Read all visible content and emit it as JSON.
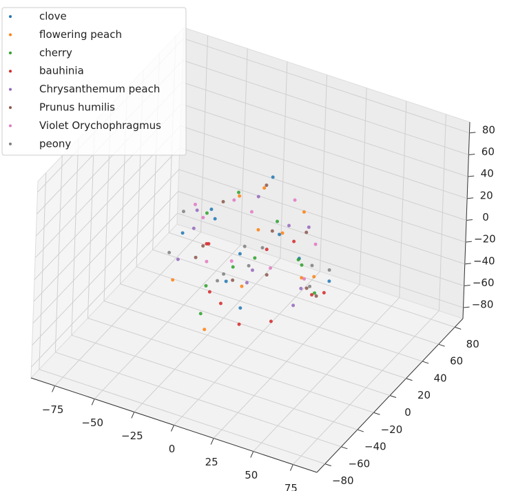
{
  "chart_data": {
    "type": "scatter3d",
    "xlim": [
      -90,
      90
    ],
    "ylim": [
      -90,
      90
    ],
    "zlim": [
      -90,
      90
    ],
    "xticks": [
      {
        "value": -75,
        "label": "−75"
      },
      {
        "value": -50,
        "label": "−50"
      },
      {
        "value": -25,
        "label": "−25"
      },
      0,
      25,
      50,
      75
    ],
    "yticks": [
      {
        "value": -80,
        "label": "−80"
      },
      {
        "value": -60,
        "label": "−60"
      },
      {
        "value": -40,
        "label": "−40"
      },
      {
        "value": -20,
        "label": "−20"
      },
      0,
      20,
      40,
      60,
      80
    ],
    "zticks": [
      {
        "value": -80,
        "label": "−80"
      },
      {
        "value": -60,
        "label": "−60"
      },
      {
        "value": -40,
        "label": "−40"
      },
      {
        "value": -20,
        "label": "−20"
      },
      0,
      20,
      40,
      60,
      80
    ],
    "grid": true,
    "legend": "upper left",
    "series": [
      {
        "name": "clove",
        "color": "#1f77b4",
        "x": [
          -30,
          12,
          40,
          -8,
          25,
          -45,
          5,
          -20,
          33,
          -12
        ],
        "y": [
          10,
          -35,
          20,
          42,
          -15,
          5,
          -40,
          28,
          -5,
          -22
        ],
        "z": [
          15,
          -20,
          -25,
          30,
          38,
          -10,
          5,
          -35,
          12,
          40
        ]
      },
      {
        "name": "flowering peach",
        "color": "#ff7f0e",
        "x": [
          -38,
          18,
          -5,
          30,
          -25,
          45,
          0,
          10,
          -15,
          22
        ],
        "y": [
          -20,
          30,
          -45,
          5,
          35,
          -10,
          15,
          -30,
          40,
          -5
        ],
        "z": [
          -30,
          20,
          -40,
          -15,
          10,
          5,
          45,
          -5,
          -20,
          30
        ]
      },
      {
        "name": "cherry",
        "color": "#2ca02c",
        "x": [
          20,
          -40,
          8,
          35,
          -15,
          -28,
          42,
          0,
          14,
          -5
        ],
        "y": [
          -8,
          25,
          -38,
          12,
          -30,
          40,
          -20,
          6,
          33,
          -45
        ],
        "z": [
          42,
          -5,
          18,
          -32,
          -42,
          8,
          22,
          -12,
          -28,
          0
        ]
      },
      {
        "name": "bauhinia",
        "color": "#d62728",
        "x": [
          -42,
          -10,
          28,
          5,
          -30,
          38,
          15,
          -22,
          45,
          -2
        ],
        "y": [
          30,
          -15,
          -28,
          45,
          8,
          18,
          -42,
          -5,
          -12,
          25
        ],
        "z": [
          -38,
          -42,
          -30,
          -25,
          -15,
          -35,
          -28,
          -45,
          -10,
          -20
        ]
      },
      {
        "name": "Chrysanthemum peach",
        "color": "#9467bd",
        "x": [
          5,
          -25,
          32,
          -40,
          18,
          -8,
          40,
          -18,
          25,
          -35
        ],
        "y": [
          38,
          -22,
          8,
          -10,
          -40,
          20,
          -25,
          45,
          15,
          2
        ],
        "z": [
          -5,
          25,
          30,
          -20,
          10,
          -38,
          -12,
          5,
          -35,
          18
        ]
      },
      {
        "name": "Prunus humilis",
        "color": "#8c564b",
        "x": [
          -15,
          30,
          -35,
          10,
          42,
          -5,
          22,
          -30,
          0,
          15
        ],
        "y": [
          -30,
          12,
          35,
          -42,
          0,
          28,
          -18,
          -8,
          22,
          40
        ],
        "z": [
          20,
          -30,
          0,
          10,
          -22,
          35,
          42,
          -15,
          -40,
          -8
        ]
      },
      {
        "name": "Violet Orychophragmus",
        "color": "#e377c2",
        "x": [
          0,
          -20,
          25,
          -35,
          12,
          38,
          -10,
          20,
          -28,
          8
        ],
        "y": [
          0,
          18,
          -25,
          10,
          30,
          -8,
          -35,
          42,
          -15,
          -40
        ],
        "z": [
          35,
          22,
          15,
          5,
          28,
          -2,
          12,
          -18,
          40,
          25
        ]
      },
      {
        "name": "peony",
        "color": "#7f7f7f",
        "x": [
          28,
          -32,
          -12,
          45,
          -22,
          10,
          -40,
          35,
          2,
          -8
        ],
        "y": [
          22,
          -38,
          40,
          -15,
          12,
          -28,
          -5,
          30,
          -45,
          15
        ],
        "z": [
          -18,
          12,
          -35,
          0,
          -42,
          30,
          20,
          -25,
          8,
          -30
        ]
      }
    ]
  }
}
